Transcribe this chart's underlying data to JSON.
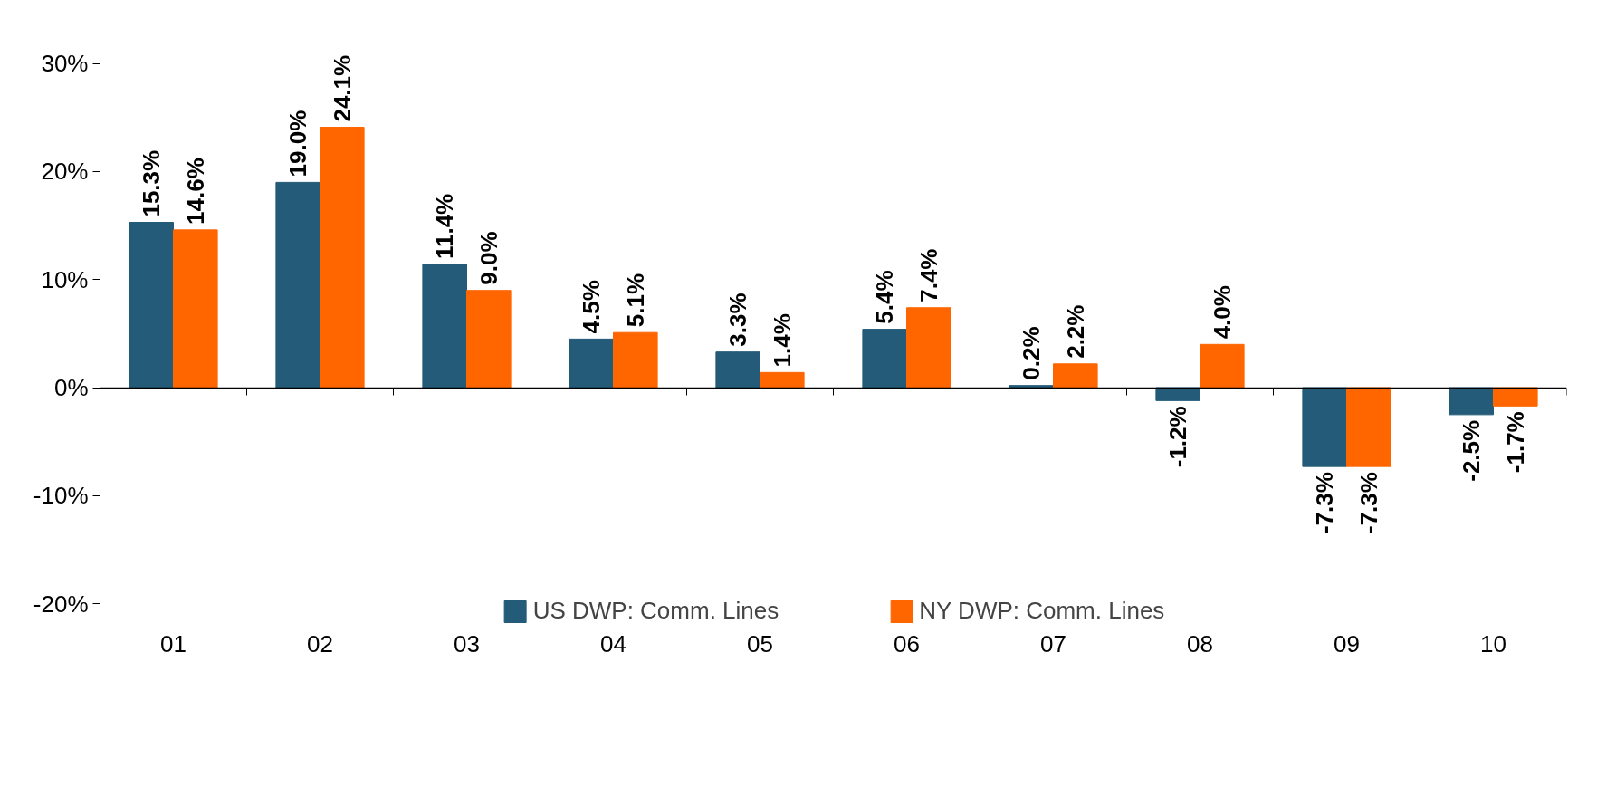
{
  "chart_data": {
    "type": "bar",
    "categories": [
      "01",
      "02",
      "03",
      "04",
      "05",
      "06",
      "07",
      "08",
      "09",
      "10"
    ],
    "series": [
      {
        "name": "US DWP: Comm. Lines",
        "color": "#235b79",
        "values": [
          15.3,
          19.0,
          11.4,
          4.5,
          3.3,
          5.4,
          0.2,
          -1.2,
          -7.3,
          -2.5
        ],
        "value_labels": [
          "15.3%",
          "19.0%",
          "11.4%",
          "4.5%",
          "3.3%",
          "5.4%",
          "0.2%",
          "-1.2%",
          "-7.3%",
          "-2.5%"
        ]
      },
      {
        "name": "NY DWP: Comm. Lines",
        "color": "#ff6600",
        "values": [
          14.6,
          24.1,
          9.0,
          5.1,
          1.4,
          7.4,
          2.2,
          4.0,
          -7.3,
          -1.7
        ],
        "value_labels": [
          "14.6%",
          "24.1%",
          "9.0%",
          "5.1%",
          "1.4%",
          "7.4%",
          "2.2%",
          "4.0%",
          "-7.3%",
          "-1.7%"
        ]
      }
    ],
    "ylim": [
      -22,
      35
    ],
    "yticks": [
      {
        "value": -20,
        "label": "-20%"
      },
      {
        "value": -10,
        "label": "-10%"
      },
      {
        "value": 0,
        "label": "0%"
      },
      {
        "value": 10,
        "label": "10%"
      },
      {
        "value": 20,
        "label": "20%"
      },
      {
        "value": 30,
        "label": "30%"
      }
    ],
    "legend": "bottom"
  }
}
